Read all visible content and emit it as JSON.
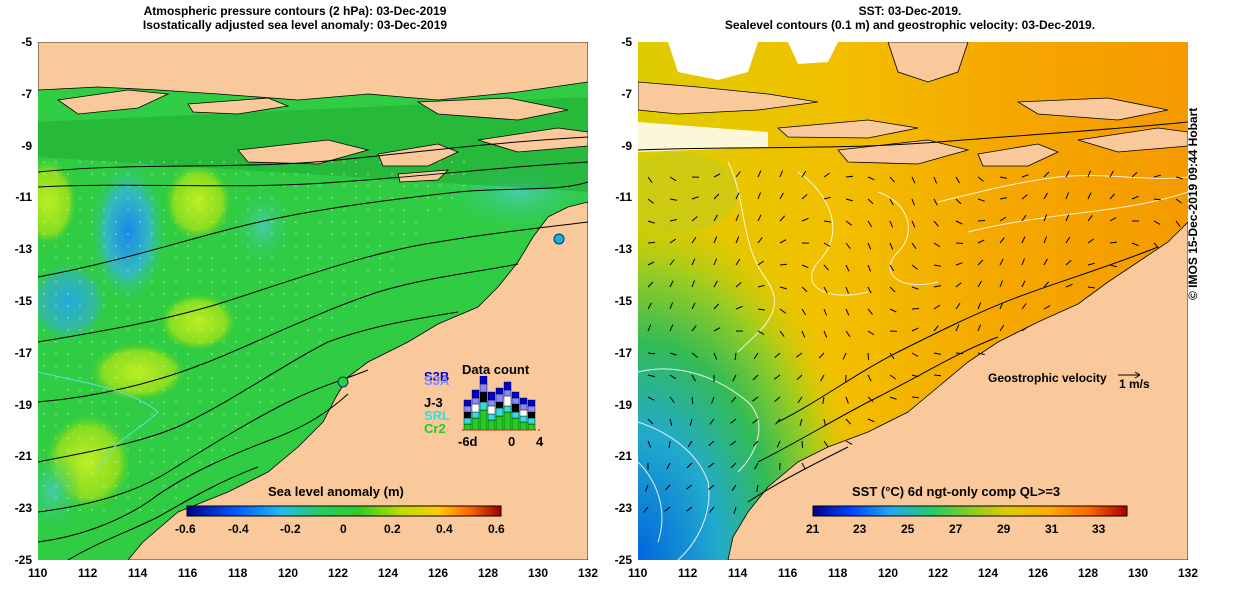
{
  "left_panel": {
    "title_line1": "Atmospheric pressure contours (2 hPa): 03-Dec-2019",
    "title_line2": "Isostatically adjusted sea level anomaly: 03-Dec-2019",
    "colorbar_label": "Sea level anomaly (m)",
    "colorbar_ticks": [
      "-0.6",
      "-0.4",
      "-0.2",
      "0",
      "0.2",
      "0.4",
      "0.6"
    ],
    "inset": {
      "title": "Data count",
      "satellites": [
        "S3B",
        "S3A",
        "J-3",
        "SRL",
        "Cr2"
      ],
      "satellite_colors": [
        "#0000cc",
        "#8888ff",
        "#000000",
        "#33dddd",
        "#22cc22"
      ],
      "x_ticks": [
        "-6d",
        "0",
        "4"
      ]
    }
  },
  "right_panel": {
    "title_line1": "SST: 03-Dec-2019.",
    "title_line2": "Sealevel contours (0.1 m) and geostrophic velocity: 03-Dec-2019.",
    "colorbar_label": "SST (°C) 6d ngt-only comp QL>=3",
    "colorbar_ticks": [
      "21",
      "23",
      "25",
      "27",
      "29",
      "31",
      "33"
    ],
    "velocity_label": "Geostrophic velocity",
    "velocity_scale": "1 m/s"
  },
  "axes": {
    "x_ticks": [
      "110",
      "112",
      "114",
      "116",
      "118",
      "120",
      "122",
      "124",
      "126",
      "128",
      "130",
      "132"
    ],
    "y_ticks": [
      "-5",
      "-7",
      "-9",
      "-11",
      "-13",
      "-15",
      "-17",
      "-19",
      "-21",
      "-23",
      "-25"
    ]
  },
  "credit": "© IMOS 15-Dec-2019 09:44 Hobart",
  "colors": {
    "land": "#f9c99b",
    "sla_ocean": "#22cc33",
    "sst_ocean": "#f5b800",
    "contour": "#000000"
  }
}
